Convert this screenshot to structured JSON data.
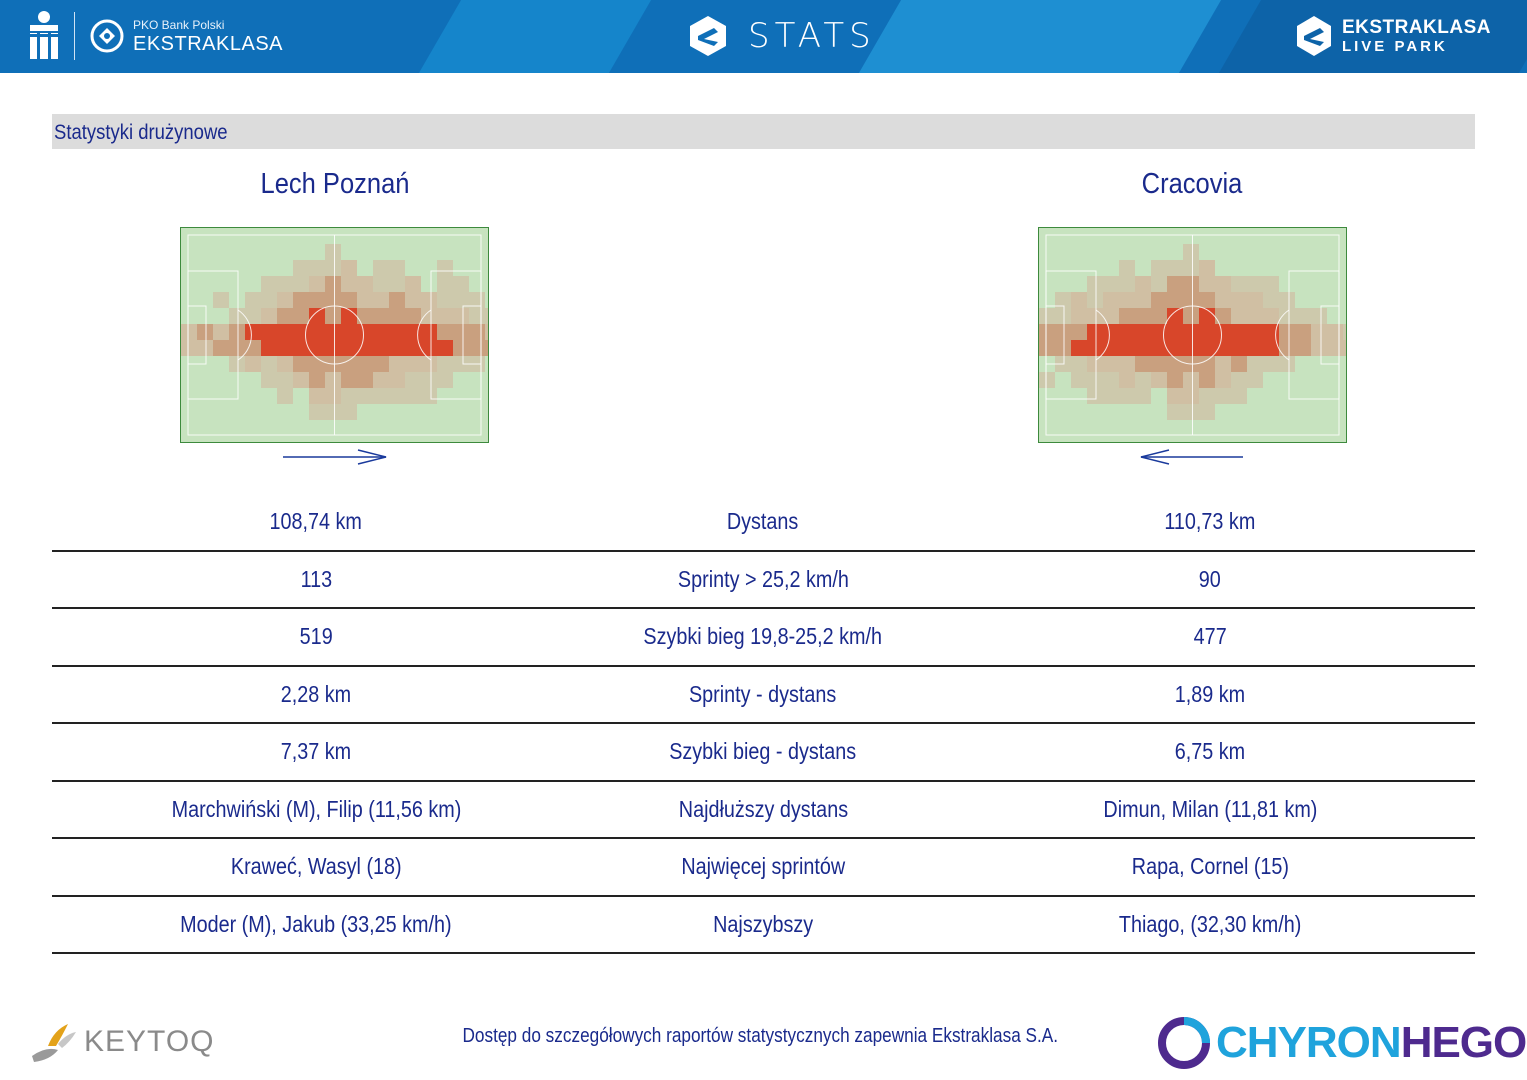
{
  "header": {
    "pko_small": "PKO Bank Polski",
    "pko_big": "EKSTRAKLASA",
    "title": "STATS",
    "right_top": "EKSTRAKLASA",
    "right_bottom": "LIVE PARK"
  },
  "section_title": "Statystyki drużynowe",
  "teams": {
    "left": "Lech Poznań",
    "right": "Cracovia"
  },
  "heatmap_colors": {
    "pitch": "#c7e3bf",
    "hot": "#d9341a",
    "mid": "#c98a6a",
    "low": "#d2b59c"
  },
  "stats": [
    {
      "left": "108,74 km",
      "label": "Dystans",
      "right": "110,73 km"
    },
    {
      "left": "113",
      "label": "Sprinty > 25,2 km/h",
      "right": "90"
    },
    {
      "left": "519",
      "label": "Szybki bieg 19,8-25,2 km/h",
      "right": "477"
    },
    {
      "left": "2,28 km",
      "label": "Sprinty - dystans",
      "right": "1,89 km"
    },
    {
      "left": "7,37 km",
      "label": "Szybki bieg - dystans",
      "right": "6,75 km"
    },
    {
      "left": "Marchwiński (M), Filip (11,56 km)",
      "label": "Najdłuższy dystans",
      "right": "Dimun, Milan (11,81 km)"
    },
    {
      "left": "Kraweć, Wasyl (18)",
      "label": "Najwięcej sprintów",
      "right": "Rapa, Cornel (15)"
    },
    {
      "left": "Moder (M), Jakub (33,25 km/h)",
      "label": "Najszybszy",
      "right": "Thiago,  (32,30 km/h)"
    }
  ],
  "footer": {
    "text": "Dostęp do szczegółowych raportów statystycznych zapewnia Ekstraklasa S.A.",
    "keytoq": "KEYTOQ",
    "chyron_a": "CHYRON",
    "chyron_b": "HEGO"
  }
}
